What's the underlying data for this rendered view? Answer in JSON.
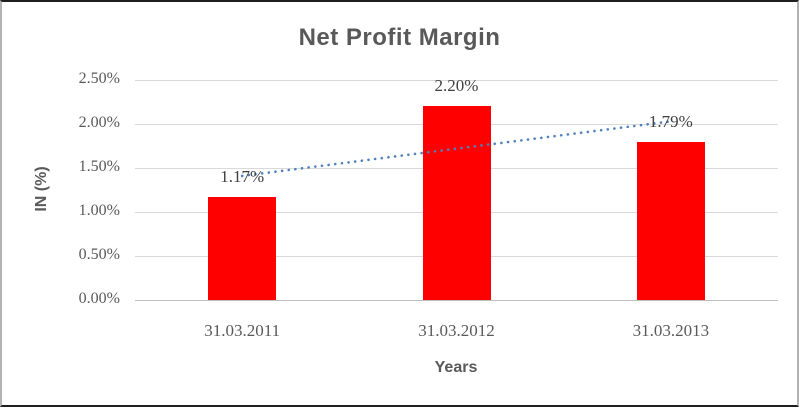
{
  "window": {
    "background": "#ffffff",
    "border_top_bottom_color": "#1f1f1f",
    "border_side_color": "#b3b3b3"
  },
  "chart_data": {
    "type": "bar",
    "title": "Net Profit Margin",
    "xlabel": "Years",
    "ylabel": "IN (%)",
    "categories": [
      "31.03.2011",
      "31.03.2012",
      "31.03.2013"
    ],
    "values": [
      1.17,
      2.2,
      1.79
    ],
    "data_labels": [
      "1.17%",
      "2.20%",
      "1.79%"
    ],
    "y_ticks": [
      "2.50%",
      "2.00%",
      "1.50%",
      "1.00%",
      "0.50%",
      "0.00%"
    ],
    "ylim": [
      0,
      2.5
    ],
    "grid": true,
    "legend": "none",
    "bar_color": "#ff0000",
    "trendline": {
      "type": "linear",
      "style": "dotted",
      "color": "#4f81bd",
      "start_value": 1.41,
      "end_value": 2.03
    },
    "colors": {
      "title_text": "#595959",
      "axis_text": "#595959",
      "data_label_text": "#404040",
      "gridline": "#d9d9d9",
      "axis_line": "#bfbfbf"
    }
  }
}
